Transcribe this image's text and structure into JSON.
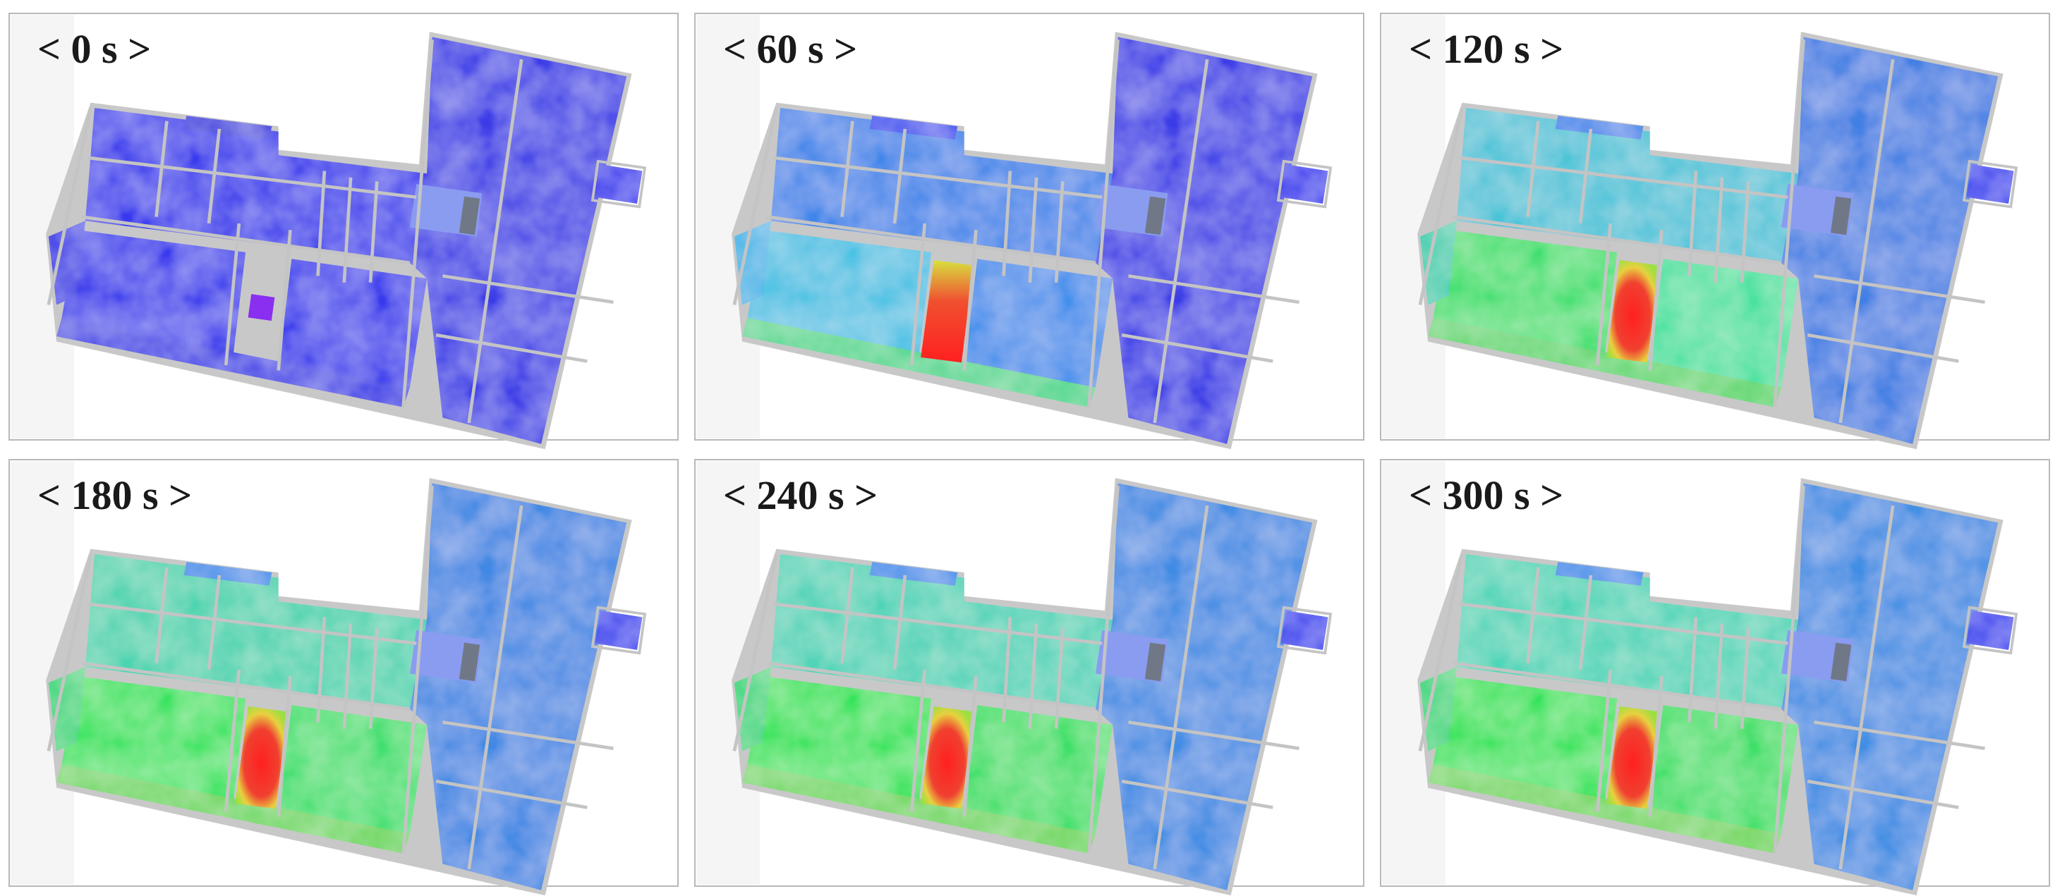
{
  "panels": [
    {
      "label": "< 0 s >"
    },
    {
      "label": "< 60 s >"
    },
    {
      "label": "< 120 s >"
    },
    {
      "label": "< 180 s >"
    },
    {
      "label": "< 240 s >"
    },
    {
      "label": "< 300 s >"
    }
  ]
}
